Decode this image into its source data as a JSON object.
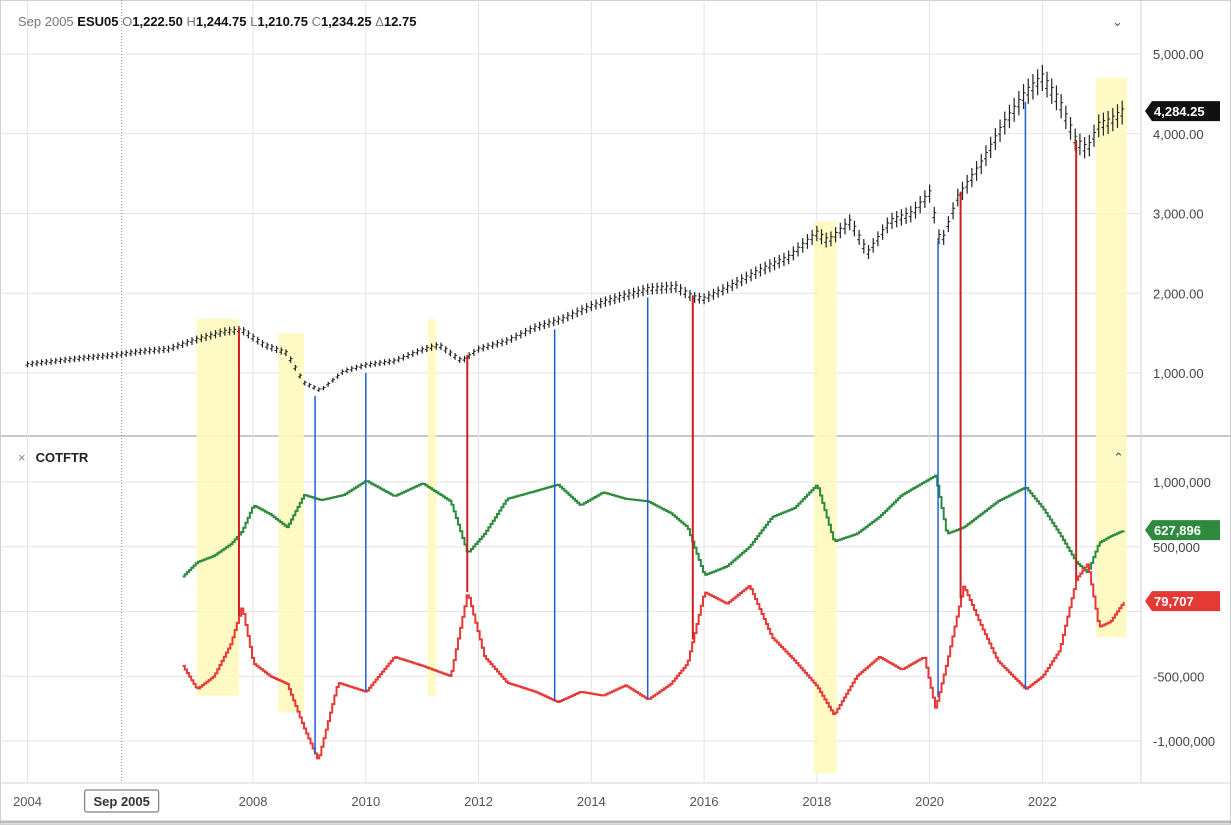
{
  "header": {
    "date": "Sep 2005",
    "symbol": "ESU05",
    "open_label": "O",
    "open": "1,222.50",
    "high_label": "H",
    "high": "1,244.75",
    "low_label": "L",
    "low": "1,210.75",
    "close_label": "C",
    "close": "1,234.25",
    "change_label": "Δ",
    "change": "12.75",
    "collapse_icon": "chevron-down-icon"
  },
  "indicator": {
    "close_icon": "close-icon",
    "name": "COTFTR",
    "collapse_icon": "chevron-up-icon"
  },
  "crosshair_label": "Sep 2005",
  "colors": {
    "price": "#222222",
    "green": "#2e8b3e",
    "red": "#e53935",
    "highlight": "#fff9b8",
    "blue_line": "#1f5fd0",
    "red_line": "#cc1f1f"
  },
  "chart_data": [
    {
      "type": "line",
      "name": "ESU05",
      "y_ticks": [
        "1,000.00",
        "2,000.00",
        "3,000.00",
        "4,000.00",
        "5,000.00"
      ],
      "y_tick_values": [
        1000,
        2000,
        3000,
        4000,
        5000
      ],
      "ylim": [
        500,
        5500
      ],
      "last_value_label": "4,284.25",
      "x": [
        2004.0,
        2004.5,
        2005.0,
        2005.5,
        2006.0,
        2006.5,
        2007.0,
        2007.5,
        2007.8,
        2008.2,
        2008.6,
        2008.9,
        2009.2,
        2009.6,
        2010.0,
        2010.5,
        2011.0,
        2011.3,
        2011.7,
        2012.0,
        2012.5,
        2013.0,
        2013.5,
        2014.0,
        2014.5,
        2015.0,
        2015.5,
        2015.8,
        2016.0,
        2016.5,
        2017.0,
        2017.5,
        2018.0,
        2018.2,
        2018.6,
        2018.9,
        2019.3,
        2019.7,
        2020.0,
        2020.2,
        2020.5,
        2020.9,
        2021.3,
        2021.7,
        2022.0,
        2022.3,
        2022.6,
        2022.8,
        2023.0,
        2023.2,
        2023.45
      ],
      "values": [
        1110,
        1150,
        1190,
        1220,
        1270,
        1300,
        1420,
        1520,
        1540,
        1350,
        1250,
        880,
        780,
        1020,
        1100,
        1150,
        1290,
        1350,
        1150,
        1300,
        1400,
        1570,
        1680,
        1840,
        1950,
        2050,
        2080,
        1950,
        1930,
        2100,
        2290,
        2450,
        2750,
        2650,
        2900,
        2500,
        2900,
        3000,
        3250,
        2600,
        3200,
        3600,
        4100,
        4500,
        4700,
        4400,
        3900,
        3800,
        4100,
        4150,
        4284
      ]
    },
    {
      "type": "line",
      "name": "COTFTR",
      "y_ticks": [
        "-1,000,000",
        "-500,000",
        "500,000",
        "1,000,000"
      ],
      "y_tick_values": [
        -1000000,
        -500000,
        500000,
        1000000
      ],
      "ylim": [
        -1300000,
        1250000
      ],
      "series": [
        {
          "name": "",
          "color": "green",
          "last_value_label": "627,896",
          "x": [
            2006.75,
            2007.0,
            2007.3,
            2007.6,
            2007.8,
            2008.0,
            2008.3,
            2008.6,
            2008.9,
            2009.2,
            2009.6,
            2010.0,
            2010.5,
            2011.0,
            2011.5,
            2011.8,
            2012.1,
            2012.5,
            2013.0,
            2013.4,
            2013.8,
            2014.2,
            2014.6,
            2015.0,
            2015.4,
            2015.7,
            2016.0,
            2016.4,
            2016.8,
            2017.2,
            2017.6,
            2018.0,
            2018.3,
            2018.7,
            2019.1,
            2019.5,
            2019.9,
            2020.1,
            2020.3,
            2020.6,
            2020.9,
            2021.2,
            2021.7,
            2022.0,
            2022.3,
            2022.6,
            2022.8,
            2023.0,
            2023.2,
            2023.45
          ],
          "values": [
            270000,
            380000,
            430000,
            520000,
            620000,
            820000,
            750000,
            650000,
            900000,
            860000,
            900000,
            1010000,
            890000,
            990000,
            850000,
            450000,
            600000,
            870000,
            930000,
            980000,
            820000,
            920000,
            870000,
            850000,
            760000,
            650000,
            280000,
            350000,
            500000,
            730000,
            800000,
            980000,
            540000,
            600000,
            730000,
            900000,
            1000000,
            1050000,
            600000,
            650000,
            750000,
            850000,
            960000,
            800000,
            600000,
            380000,
            300000,
            530000,
            580000,
            627896
          ]
        },
        {
          "name": "",
          "color": "red",
          "last_value_label": "79,707",
          "x": [
            2006.75,
            2007.0,
            2007.3,
            2007.6,
            2007.8,
            2008.0,
            2008.3,
            2008.6,
            2008.9,
            2009.15,
            2009.5,
            2010.0,
            2010.5,
            2011.0,
            2011.5,
            2011.8,
            2012.1,
            2012.5,
            2013.0,
            2013.4,
            2013.8,
            2014.2,
            2014.6,
            2015.0,
            2015.4,
            2015.7,
            2016.0,
            2016.4,
            2016.8,
            2017.2,
            2017.6,
            2018.0,
            2018.3,
            2018.7,
            2019.1,
            2019.5,
            2019.9,
            2020.1,
            2020.3,
            2020.6,
            2020.9,
            2021.2,
            2021.7,
            2022.0,
            2022.3,
            2022.6,
            2022.8,
            2023.0,
            2023.2,
            2023.45
          ],
          "values": [
            -420000,
            -600000,
            -500000,
            -250000,
            40000,
            -400000,
            -500000,
            -560000,
            -900000,
            -1150000,
            -550000,
            -620000,
            -350000,
            -420000,
            -500000,
            150000,
            -350000,
            -550000,
            -620000,
            -700000,
            -620000,
            -650000,
            -570000,
            -680000,
            -560000,
            -400000,
            150000,
            60000,
            200000,
            -200000,
            -380000,
            -580000,
            -800000,
            -500000,
            -350000,
            -450000,
            -350000,
            -750000,
            -400000,
            200000,
            -100000,
            -380000,
            -600000,
            -500000,
            -300000,
            250000,
            370000,
            -120000,
            -80000,
            79707
          ]
        }
      ]
    },
    {
      "type": "line",
      "name": "time-axis",
      "x_ticks": [
        "2004",
        "2008",
        "2010",
        "2012",
        "2014",
        "2016",
        "2018",
        "2020",
        "2022"
      ],
      "x_tick_values": [
        2004,
        2008,
        2010,
        2012,
        2014,
        2016,
        2018,
        2020,
        2022
      ],
      "xlim": [
        2003.6,
        2023.75
      ],
      "crosshair_x": 2005.67
    },
    {
      "type": "area",
      "name": "highlight-bands",
      "ranges": [
        [
          2007.0,
          2007.75
        ],
        [
          2008.45,
          2008.9
        ],
        [
          2011.1,
          2011.25
        ],
        [
          2017.95,
          2018.35
        ],
        [
          2022.95,
          2023.5
        ]
      ]
    },
    {
      "type": "line",
      "name": "vertical-markers",
      "blue": [
        2009.1,
        2010.0,
        2013.35,
        2015.0,
        2020.15,
        2021.7
      ],
      "red": [
        2007.75,
        2011.8,
        2015.8,
        2020.55,
        2022.6
      ]
    }
  ]
}
